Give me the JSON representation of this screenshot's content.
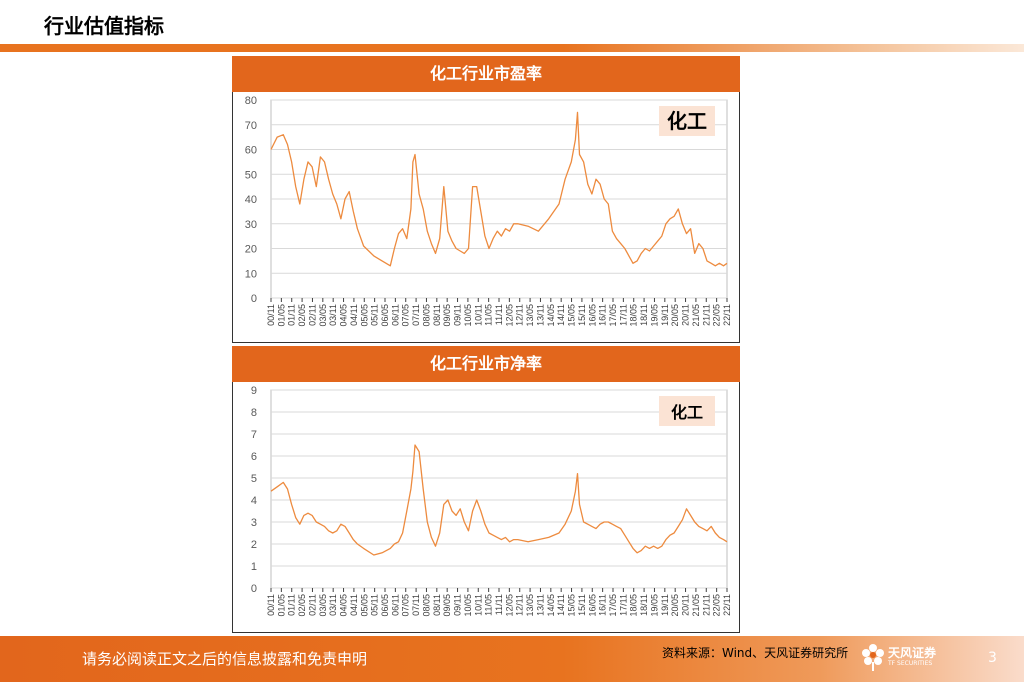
{
  "page": {
    "title": "行业估值指标"
  },
  "footer": {
    "disclaimer": "请务必阅读正文之后的信息披露和免责申明",
    "source": "资料来源：Wind、天风证券研究所",
    "logo_text": "天风证券",
    "logo_sub": "TF SECURITIES",
    "page_number": "3"
  },
  "colors": {
    "accent": "#e2661c",
    "line": "#ed8b3f"
  },
  "chart_data": [
    {
      "type": "line",
      "title": "化工行业市盈率",
      "annotation": "化工",
      "ylim": [
        0,
        80
      ],
      "yticks": [
        0,
        10,
        20,
        30,
        40,
        50,
        60,
        70,
        80
      ],
      "xlim": [
        0,
        22.17
      ],
      "xtick_labels": [
        "00/11",
        "01/05",
        "01/11",
        "02/05",
        "02/11",
        "03/05",
        "03/11",
        "04/05",
        "04/11",
        "05/05",
        "05/11",
        "06/05",
        "06/11",
        "07/05",
        "07/11",
        "08/05",
        "08/11",
        "09/05",
        "09/11",
        "10/05",
        "10/11",
        "11/05",
        "11/11",
        "12/05",
        "12/11",
        "13/05",
        "13/11",
        "14/05",
        "14/11",
        "15/05",
        "15/11",
        "16/05",
        "16/11",
        "17/05",
        "17/11",
        "18/05",
        "18/11",
        "19/05",
        "19/11",
        "20/05",
        "20/11",
        "21/05",
        "21/11",
        "22/05",
        "22/11"
      ],
      "grid": true,
      "series": [
        {
          "x": [
            0,
            0.3,
            0.6,
            0.8,
            1.0,
            1.2,
            1.4,
            1.6,
            1.8,
            2.0,
            2.2,
            2.4,
            2.6,
            2.8,
            3.0,
            3.2,
            3.4,
            3.6,
            3.8,
            4.0,
            4.2,
            4.5,
            5.0,
            5.4,
            5.8,
            6.0,
            6.2,
            6.4,
            6.6,
            6.8,
            6.9,
            7.0,
            7.2,
            7.4,
            7.6,
            7.8,
            8.0,
            8.2,
            8.4,
            8.6,
            8.8,
            9.0,
            9.2,
            9.4,
            9.6,
            9.8,
            10.0,
            10.2,
            10.4,
            10.6,
            10.8,
            11.0,
            11.2,
            11.4,
            11.6,
            11.8,
            12.0,
            12.5,
            13.0,
            13.5,
            14.0,
            14.3,
            14.6,
            14.8,
            14.9,
            15.0,
            15.2,
            15.4,
            15.6,
            15.8,
            16.0,
            16.2,
            16.4,
            16.6,
            16.8,
            17.0,
            17.2,
            17.4,
            17.6,
            17.8,
            18.0,
            18.2,
            18.4,
            18.6,
            18.8,
            19.0,
            19.2,
            19.4,
            19.6,
            19.8,
            20.0,
            20.2,
            20.4,
            20.6,
            20.8,
            21.0,
            21.2,
            21.4,
            21.6,
            21.8,
            22.0,
            22.17
          ],
          "y": [
            60,
            65,
            66,
            62,
            55,
            45,
            38,
            48,
            55,
            53,
            45,
            57,
            55,
            48,
            42,
            38,
            32,
            40,
            43,
            35,
            28,
            21,
            17,
            15,
            13,
            20,
            26,
            28,
            24,
            36,
            55,
            58,
            42,
            36,
            27,
            22,
            18,
            24,
            45,
            27,
            23,
            20,
            19,
            18,
            20,
            45,
            45,
            35,
            25,
            20,
            24,
            27,
            25,
            28,
            27,
            30,
            30,
            29,
            27,
            32,
            38,
            48,
            55,
            64,
            75,
            58,
            55,
            46,
            42,
            48,
            46,
            40,
            38,
            27,
            24,
            22,
            20,
            17,
            14,
            15,
            18,
            20,
            19,
            21,
            23,
            25,
            30,
            32,
            33,
            36,
            30,
            26,
            28,
            18,
            22,
            20,
            15,
            14,
            13,
            14,
            13,
            14
          ]
        }
      ]
    },
    {
      "type": "line",
      "title": "化工行业市净率",
      "annotation": "化工",
      "ylim": [
        0,
        9
      ],
      "yticks": [
        0,
        1,
        2,
        3,
        4,
        5,
        6,
        7,
        8,
        9
      ],
      "xlim": [
        0,
        22.17
      ],
      "xtick_labels": [
        "00/11",
        "01/05",
        "01/11",
        "02/05",
        "02/11",
        "03/05",
        "03/11",
        "04/05",
        "04/11",
        "05/05",
        "05/11",
        "06/05",
        "06/11",
        "07/05",
        "07/11",
        "08/05",
        "08/11",
        "09/05",
        "09/11",
        "10/05",
        "10/11",
        "11/05",
        "11/11",
        "12/05",
        "12/11",
        "13/05",
        "13/11",
        "14/05",
        "14/11",
        "15/05",
        "15/11",
        "16/05",
        "16/11",
        "17/05",
        "17/11",
        "18/05",
        "18/11",
        "19/05",
        "19/11",
        "20/05",
        "20/11",
        "21/05",
        "21/11",
        "22/05",
        "22/11"
      ],
      "grid": true,
      "series": [
        {
          "x": [
            0,
            0.3,
            0.6,
            0.8,
            1.0,
            1.2,
            1.4,
            1.6,
            1.8,
            2.0,
            2.2,
            2.4,
            2.6,
            2.8,
            3.0,
            3.2,
            3.4,
            3.6,
            3.8,
            4.0,
            4.2,
            4.5,
            5.0,
            5.4,
            5.8,
            6.0,
            6.2,
            6.4,
            6.6,
            6.8,
            6.9,
            7.0,
            7.2,
            7.4,
            7.6,
            7.8,
            8.0,
            8.2,
            8.4,
            8.6,
            8.8,
            9.0,
            9.2,
            9.4,
            9.6,
            9.8,
            10.0,
            10.2,
            10.4,
            10.6,
            10.8,
            11.0,
            11.2,
            11.4,
            11.6,
            11.8,
            12.0,
            12.5,
            13.0,
            13.5,
            14.0,
            14.3,
            14.6,
            14.8,
            14.9,
            15.0,
            15.2,
            15.4,
            15.6,
            15.8,
            16.0,
            16.2,
            16.4,
            16.6,
            16.8,
            17.0,
            17.2,
            17.4,
            17.6,
            17.8,
            18.0,
            18.2,
            18.4,
            18.6,
            18.8,
            19.0,
            19.2,
            19.4,
            19.6,
            19.8,
            20.0,
            20.2,
            20.4,
            20.6,
            20.8,
            21.0,
            21.2,
            21.4,
            21.6,
            21.8,
            22.0,
            22.17
          ],
          "y": [
            4.4,
            4.6,
            4.8,
            4.5,
            3.8,
            3.2,
            2.9,
            3.3,
            3.4,
            3.3,
            3.0,
            2.9,
            2.8,
            2.6,
            2.5,
            2.6,
            2.9,
            2.8,
            2.5,
            2.2,
            2.0,
            1.8,
            1.5,
            1.6,
            1.8,
            2.0,
            2.1,
            2.5,
            3.5,
            4.5,
            5.3,
            6.5,
            6.2,
            4.5,
            3.0,
            2.3,
            1.9,
            2.5,
            3.8,
            4.0,
            3.5,
            3.3,
            3.6,
            3.0,
            2.6,
            3.5,
            4.0,
            3.5,
            2.9,
            2.5,
            2.4,
            2.3,
            2.2,
            2.3,
            2.1,
            2.2,
            2.2,
            2.1,
            2.2,
            2.3,
            2.5,
            2.9,
            3.5,
            4.4,
            5.2,
            3.8,
            3.0,
            2.9,
            2.8,
            2.7,
            2.9,
            3.0,
            3.0,
            2.9,
            2.8,
            2.7,
            2.4,
            2.1,
            1.8,
            1.6,
            1.7,
            1.9,
            1.8,
            1.9,
            1.8,
            1.9,
            2.2,
            2.4,
            2.5,
            2.8,
            3.1,
            3.6,
            3.3,
            3.0,
            2.8,
            2.7,
            2.6,
            2.8,
            2.5,
            2.3,
            2.2,
            2.1
          ]
        }
      ]
    }
  ]
}
